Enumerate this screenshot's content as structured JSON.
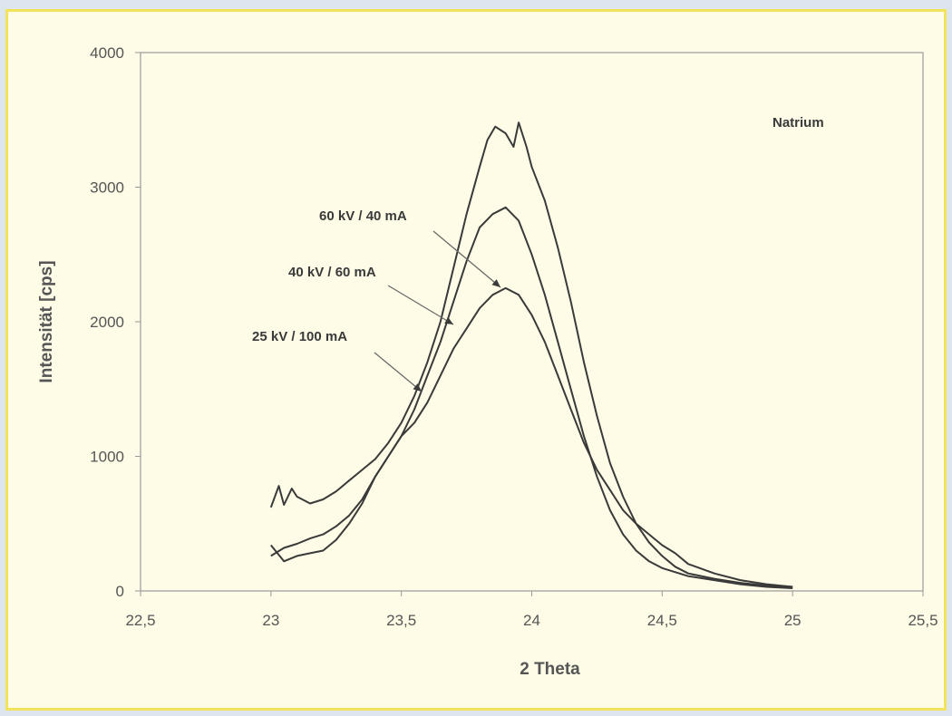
{
  "colors": {
    "page_background": "#dde6ee",
    "card_background": "#fefbe6",
    "card_border": "#f1e45a",
    "line": "#3a3a3a",
    "text": "#555555"
  },
  "chart_data": {
    "type": "line",
    "title": "",
    "xlabel": "2 Theta",
    "ylabel": "Intensität [cps]",
    "xlim": [
      22.5,
      25.5
    ],
    "ylim": [
      0,
      4000
    ],
    "x_ticks": [
      22.5,
      23,
      23.5,
      24,
      24.5,
      25,
      25.5
    ],
    "x_tick_labels": [
      "22,5",
      "23",
      "23,5",
      "24",
      "24,5",
      "25",
      "25,5"
    ],
    "y_ticks": [
      0,
      1000,
      2000,
      3000,
      4000
    ],
    "y_tick_labels": [
      "0",
      "1000",
      "2000",
      "3000",
      "4000"
    ],
    "grid": false,
    "annotations": [
      {
        "text": "Natrium"
      },
      {
        "text": "60 kV / 40 mA"
      },
      {
        "text": "40 kV / 60 mA"
      },
      {
        "text": "25 kV / 100 mA"
      }
    ],
    "series": [
      {
        "label": "60 kV / 40 mA",
        "x": [
          23.0,
          23.03,
          23.05,
          23.08,
          23.1,
          23.15,
          23.2,
          23.25,
          23.3,
          23.35,
          23.4,
          23.45,
          23.5,
          23.55,
          23.6,
          23.65,
          23.7,
          23.75,
          23.8,
          23.83,
          23.86,
          23.9,
          23.93,
          23.95,
          23.98,
          24.0,
          24.05,
          24.1,
          24.15,
          24.2,
          24.25,
          24.3,
          24.35,
          24.4,
          24.45,
          24.5,
          24.55,
          24.6,
          24.7,
          24.8,
          24.9,
          25.0
        ],
        "y": [
          620,
          780,
          640,
          760,
          700,
          650,
          680,
          740,
          820,
          900,
          980,
          1100,
          1250,
          1450,
          1700,
          2000,
          2400,
          2800,
          3150,
          3350,
          3450,
          3400,
          3300,
          3480,
          3300,
          3150,
          2900,
          2550,
          2150,
          1700,
          1300,
          950,
          700,
          500,
          360,
          260,
          180,
          130,
          90,
          60,
          40,
          30
        ]
      },
      {
        "label": "40 kV / 60 mA",
        "x": [
          23.0,
          23.05,
          23.1,
          23.15,
          23.2,
          23.25,
          23.3,
          23.35,
          23.4,
          23.45,
          23.5,
          23.55,
          23.6,
          23.65,
          23.7,
          23.75,
          23.8,
          23.85,
          23.9,
          23.95,
          24.0,
          24.05,
          24.1,
          24.15,
          24.2,
          24.25,
          24.3,
          24.35,
          24.4,
          24.45,
          24.5,
          24.6,
          24.7,
          24.8,
          24.9,
          25.0
        ],
        "y": [
          260,
          320,
          350,
          390,
          420,
          480,
          560,
          680,
          850,
          1000,
          1150,
          1350,
          1600,
          1850,
          2150,
          2450,
          2700,
          2800,
          2850,
          2750,
          2500,
          2200,
          1850,
          1500,
          1150,
          850,
          600,
          420,
          300,
          220,
          170,
          110,
          80,
          50,
          30,
          20
        ]
      },
      {
        "label": "25 kV / 100 mA",
        "x": [
          23.0,
          23.05,
          23.1,
          23.15,
          23.2,
          23.25,
          23.3,
          23.35,
          23.4,
          23.45,
          23.5,
          23.55,
          23.6,
          23.65,
          23.7,
          23.75,
          23.8,
          23.85,
          23.9,
          23.95,
          24.0,
          24.05,
          24.1,
          24.15,
          24.2,
          24.25,
          24.3,
          24.35,
          24.4,
          24.45,
          24.5,
          24.55,
          24.6,
          24.7,
          24.8,
          24.9,
          25.0
        ],
        "y": [
          340,
          220,
          260,
          280,
          300,
          380,
          500,
          650,
          850,
          1000,
          1150,
          1250,
          1400,
          1600,
          1800,
          1950,
          2100,
          2200,
          2250,
          2200,
          2050,
          1850,
          1600,
          1350,
          1100,
          900,
          750,
          600,
          500,
          420,
          340,
          280,
          200,
          130,
          80,
          50,
          30
        ]
      }
    ]
  }
}
